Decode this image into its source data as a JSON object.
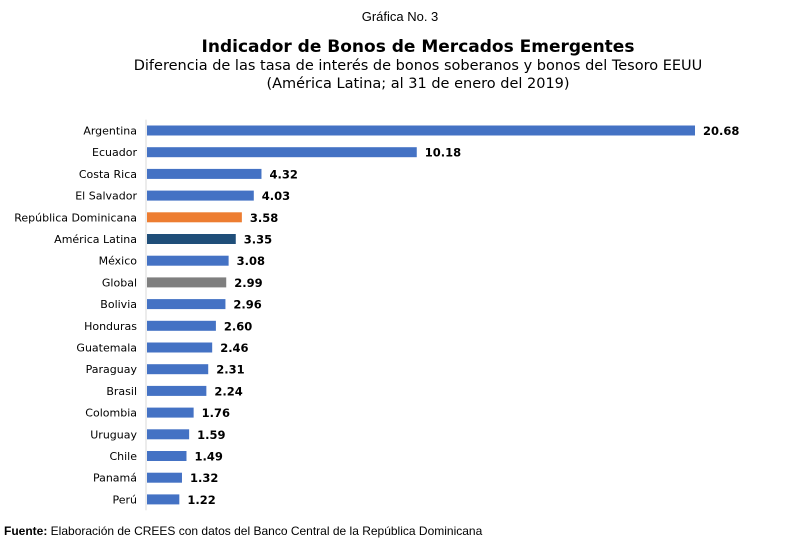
{
  "header": {
    "kicker": "Gráfica No. 3"
  },
  "footer": {
    "label": "Fuente:",
    "text": " Elaboración  de CREES con datos del Banco Central de la República Dominicana"
  },
  "colors": {
    "default": "#4472C4",
    "highlight": "#ED7D31",
    "region": "#1F4E79",
    "global": "#7F7F7F",
    "axis": "#D9D9D9"
  },
  "chart_data": {
    "type": "bar",
    "orientation": "horizontal",
    "title": "Indicador de Bonos de Mercados Emergentes",
    "subtitle_line1": "Diferencia de las tasa de interés de bonos soberanos y bonos del Tesoro EEUU",
    "subtitle_line2": "(América Latina; al 31 de enero del 2019)",
    "xlabel": "",
    "ylabel": "",
    "xlim": [
      0,
      20.68
    ],
    "grid": false,
    "legend": "none",
    "data_labels": true,
    "categories": [
      "Argentina",
      "Ecuador",
      "Costa Rica",
      "El Salvador",
      "República Dominicana",
      "América Latina",
      "México",
      "Global",
      "Bolivia",
      "Honduras",
      "Guatemala",
      "Paraguay",
      "Brasil",
      "Colombia",
      "Uruguay",
      "Chile",
      "Panamá",
      "Perú"
    ],
    "values": [
      20.68,
      10.18,
      4.32,
      4.03,
      3.58,
      3.35,
      3.08,
      2.99,
      2.96,
      2.6,
      2.46,
      2.31,
      2.24,
      1.76,
      1.59,
      1.49,
      1.32,
      1.22
    ],
    "value_labels": [
      "20.68",
      "10.18",
      "4.32",
      "4.03",
      "3.58",
      "3.35",
      "3.08",
      "2.99",
      "2.96",
      "2.60",
      "2.46",
      "2.31",
      "2.24",
      "1.76",
      "1.59",
      "1.49",
      "1.32",
      "1.22"
    ],
    "bar_color_keys": [
      "default",
      "default",
      "default",
      "default",
      "highlight",
      "region",
      "default",
      "global",
      "default",
      "default",
      "default",
      "default",
      "default",
      "default",
      "default",
      "default",
      "default",
      "default"
    ]
  }
}
